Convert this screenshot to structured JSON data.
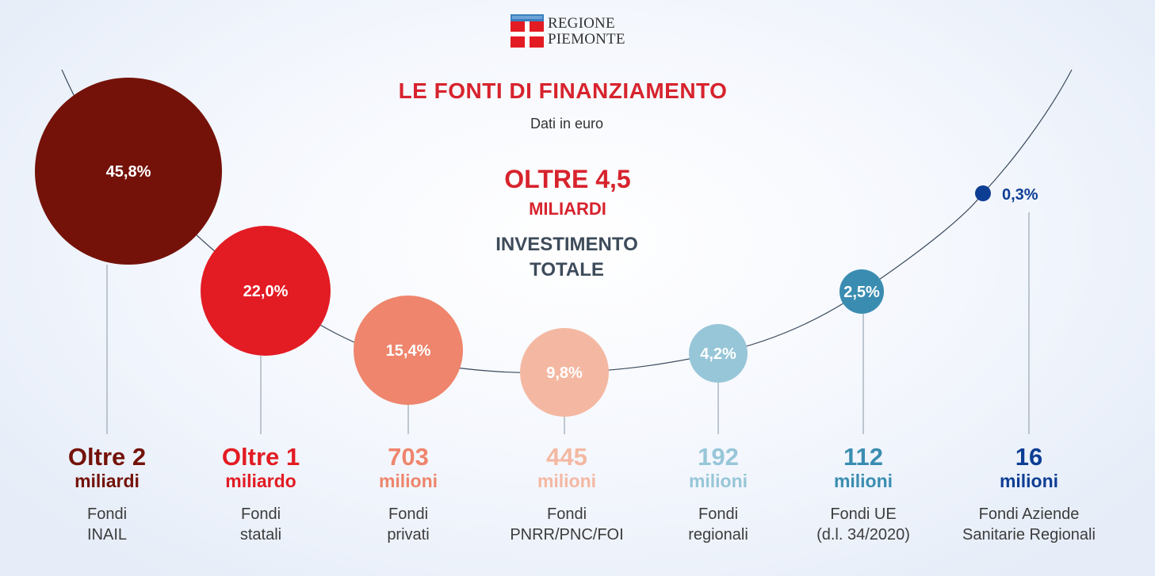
{
  "logo": {
    "line1": "REGIONE",
    "line2": "PIEMONTE"
  },
  "title": "LE FONTI DI FINANZIAMENTO",
  "subtitle": "Dati in euro",
  "total": {
    "value": "OLTRE 4,5",
    "unit": "MILIARDI",
    "caption_line1": "INVESTIMENTO",
    "caption_line2": "TOTALE"
  },
  "colors": {
    "title_red": "#d7232d",
    "inail": "#741209",
    "statali": "#e31b23",
    "privati": "#ee856c",
    "pnrr": "#f4b8a2",
    "regionali": "#97c6d8",
    "ue": "#3a8db1",
    "aziende": "#0e3e94",
    "curve": "#3a4a5c"
  },
  "chart_data": {
    "type": "bubble",
    "title": "LE FONTI DI FINANZIAMENTO",
    "subtitle": "Dati in euro",
    "series": [
      {
        "name": "Fondi INAIL",
        "percent": 45.8,
        "percent_label": "45,8%",
        "amount_label": "Oltre 2",
        "unit": "miliardi",
        "source_line1": "Fondi",
        "source_line2": "INAIL",
        "color": "#741209"
      },
      {
        "name": "Fondi statali",
        "percent": 22.0,
        "percent_label": "22,0%",
        "amount_label": "Oltre 1",
        "unit": "miliardo",
        "source_line1": "Fondi",
        "source_line2": "statali",
        "color": "#e31b23"
      },
      {
        "name": "Fondi privati",
        "percent": 15.4,
        "percent_label": "15,4%",
        "amount_label": "703",
        "unit": "milioni",
        "source_line1": "Fondi",
        "source_line2": "privati",
        "color": "#ee856c"
      },
      {
        "name": "Fondi PNRR/PNC/FOI",
        "percent": 9.8,
        "percent_label": "9,8%",
        "amount_label": "445",
        "unit": "milioni",
        "source_line1": "Fondi",
        "source_line2": "PNRR/PNC/FOI",
        "color": "#f4b8a2"
      },
      {
        "name": "Fondi regionali",
        "percent": 4.2,
        "percent_label": "4,2%",
        "amount_label": "192",
        "unit": "milioni",
        "source_line1": "Fondi",
        "source_line2": "regionali",
        "color": "#97c6d8"
      },
      {
        "name": "Fondi UE (d.l. 34/2020)",
        "percent": 2.5,
        "percent_label": "2,5%",
        "amount_label": "112",
        "unit": "milioni",
        "source_line1": "Fondi UE",
        "source_line2": "(d.l. 34/2020)",
        "color": "#3a8db1"
      },
      {
        "name": "Fondi Aziende Sanitarie Regionali",
        "percent": 0.3,
        "percent_label": "0,3%",
        "amount_label": "16",
        "unit": "milioni",
        "source_line1": "Fondi Aziende",
        "source_line2": "Sanitarie Regionali",
        "color": "#0e3e94"
      }
    ]
  }
}
